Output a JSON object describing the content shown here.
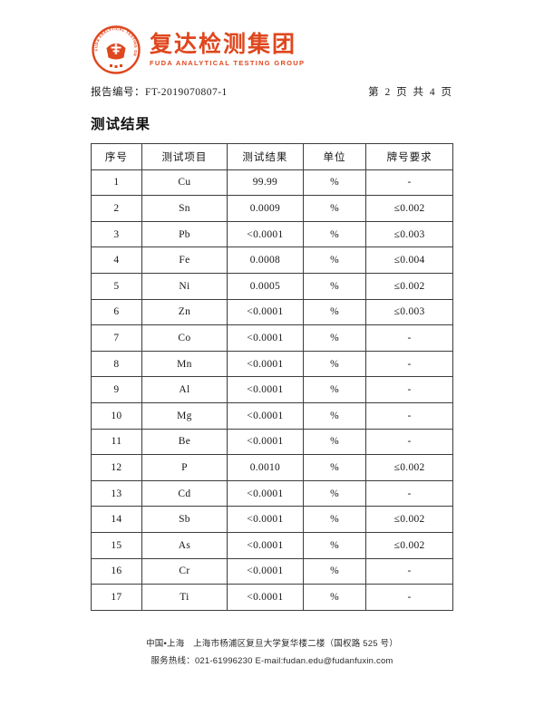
{
  "brand": {
    "name_cn": "复达检测集团",
    "name_en": "FUDA ANALYTICAL TESTING GROUP",
    "seal_ring_text": "FUDA ANALYTICAL TESTING GROUP"
  },
  "report_meta": {
    "report_no_label": "报告编号：",
    "report_no_value": "FT-2019070807-1",
    "page_indicator": "第 2 页 共 4 页"
  },
  "section": {
    "title": "测试结果"
  },
  "table": {
    "headers": [
      "序号",
      "测试项目",
      "测试结果",
      "单位",
      "牌号要求"
    ],
    "rows": [
      [
        "1",
        "Cu",
        "99.99",
        "%",
        "-"
      ],
      [
        "2",
        "Sn",
        "0.0009",
        "%",
        "≤0.002"
      ],
      [
        "3",
        "Pb",
        "<0.0001",
        "%",
        "≤0.003"
      ],
      [
        "4",
        "Fe",
        "0.0008",
        "%",
        "≤0.004"
      ],
      [
        "5",
        "Ni",
        "0.0005",
        "%",
        "≤0.002"
      ],
      [
        "6",
        "Zn",
        "<0.0001",
        "%",
        "≤0.003"
      ],
      [
        "7",
        "Co",
        "<0.0001",
        "%",
        "-"
      ],
      [
        "8",
        "Mn",
        "<0.0001",
        "%",
        "-"
      ],
      [
        "9",
        "Al",
        "<0.0001",
        "%",
        "-"
      ],
      [
        "10",
        "Mg",
        "<0.0001",
        "%",
        "-"
      ],
      [
        "11",
        "Be",
        "<0.0001",
        "%",
        "-"
      ],
      [
        "12",
        "P",
        "0.0010",
        "%",
        "≤0.002"
      ],
      [
        "13",
        "Cd",
        "<0.0001",
        "%",
        "-"
      ],
      [
        "14",
        "Sb",
        "<0.0001",
        "%",
        "≤0.002"
      ],
      [
        "15",
        "As",
        "<0.0001",
        "%",
        "≤0.002"
      ],
      [
        "16",
        "Cr",
        "<0.0001",
        "%",
        "-"
      ],
      [
        "17",
        "Ti",
        "<0.0001",
        "%",
        "-"
      ]
    ]
  },
  "footer": {
    "address": "中国•上海　上海市杨浦区复旦大学复华楼二楼（国权路 525 号）",
    "contact": "服务热线：021-61996230 E-mail:fudan.edu@fudanfuxin.com"
  },
  "colors": {
    "brand_red": "#df471e",
    "table_border": "#3d3d3d",
    "text": "#1c1c1c"
  }
}
